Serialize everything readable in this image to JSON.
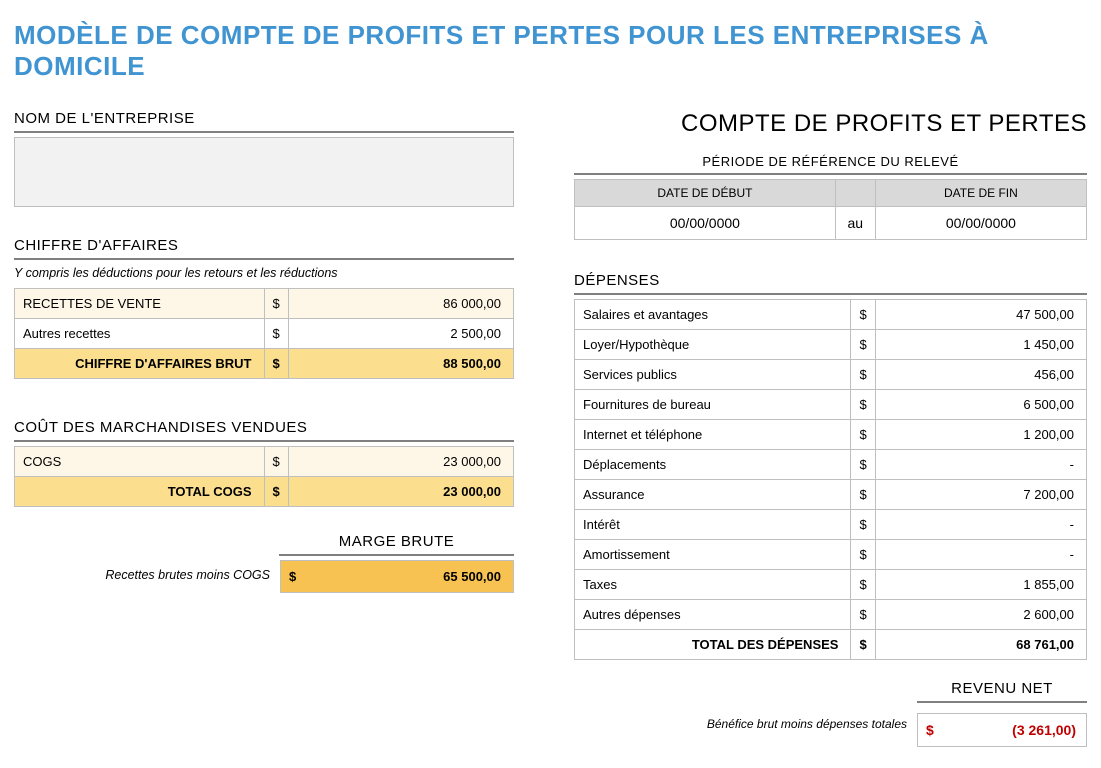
{
  "title": "MODÈLE DE COMPTE DE PROFITS ET PERTES POUR LES ENTREPRISES À DOMICILE",
  "main_heading": "COMPTE DE PROFITS ET PERTES",
  "colors": {
    "title": "#3f94d1",
    "row_light": "#fef7e8",
    "row_total": "#fbdf8f",
    "marge_box": "#f8c252",
    "header_gray": "#d9d9d9",
    "border": "#bfbfbf",
    "negative": "#c00000"
  },
  "company": {
    "label": "NOM DE L'ENTREPRISE",
    "value": ""
  },
  "period": {
    "label": "PÉRIODE DE RÉFÉRENCE DU RELEVÉ",
    "start_header": "DATE DE DÉBUT",
    "end_header": "DATE DE FIN",
    "start": "00/00/0000",
    "end": "00/00/0000",
    "separator": "au"
  },
  "revenue": {
    "heading": "CHIFFRE D'AFFAIRES",
    "subtitle": "Y compris les déductions pour les retours et les réductions",
    "currency": "$",
    "rows": [
      {
        "label": "RECETTES  DE VENTE",
        "value": "86 000,00"
      },
      {
        "label": "Autres recettes",
        "value": "2 500,00"
      }
    ],
    "total_label": "CHIFFRE D'AFFAIRES BRUT",
    "total_value": "88 500,00"
  },
  "cogs": {
    "heading": "COÛT DES MARCHANDISES VENDUES",
    "currency": "$",
    "rows": [
      {
        "label": "COGS",
        "value": "23 000,00"
      }
    ],
    "total_label": "TOTAL COGS",
    "total_value": "23 000,00"
  },
  "gross_margin": {
    "heading": "MARGE BRUTE",
    "note": "Recettes brutes moins COGS",
    "currency": "$",
    "value": "65 500,00"
  },
  "expenses": {
    "heading": "DÉPENSES",
    "currency": "$",
    "rows": [
      {
        "label": "Salaires et avantages",
        "value": "47 500,00"
      },
      {
        "label": "Loyer/Hypothèque",
        "value": "1 450,00"
      },
      {
        "label": "Services publics",
        "value": "456,00"
      },
      {
        "label": "Fournitures de bureau",
        "value": "6 500,00"
      },
      {
        "label": "Internet et téléphone",
        "value": "1 200,00"
      },
      {
        "label": "Déplacements",
        "value": "-"
      },
      {
        "label": "Assurance",
        "value": "7 200,00"
      },
      {
        "label": "Intérêt",
        "value": "-"
      },
      {
        "label": "Amortissement",
        "value": "-"
      },
      {
        "label": "Taxes",
        "value": "1 855,00"
      },
      {
        "label": "Autres dépenses",
        "value": "2 600,00"
      }
    ],
    "total_label": "TOTAL DES DÉPENSES",
    "total_value": "68 761,00"
  },
  "net": {
    "heading": "REVENU NET",
    "note": "Bénéfice brut moins dépenses totales",
    "currency": "$",
    "value": "(3 261,00)"
  }
}
